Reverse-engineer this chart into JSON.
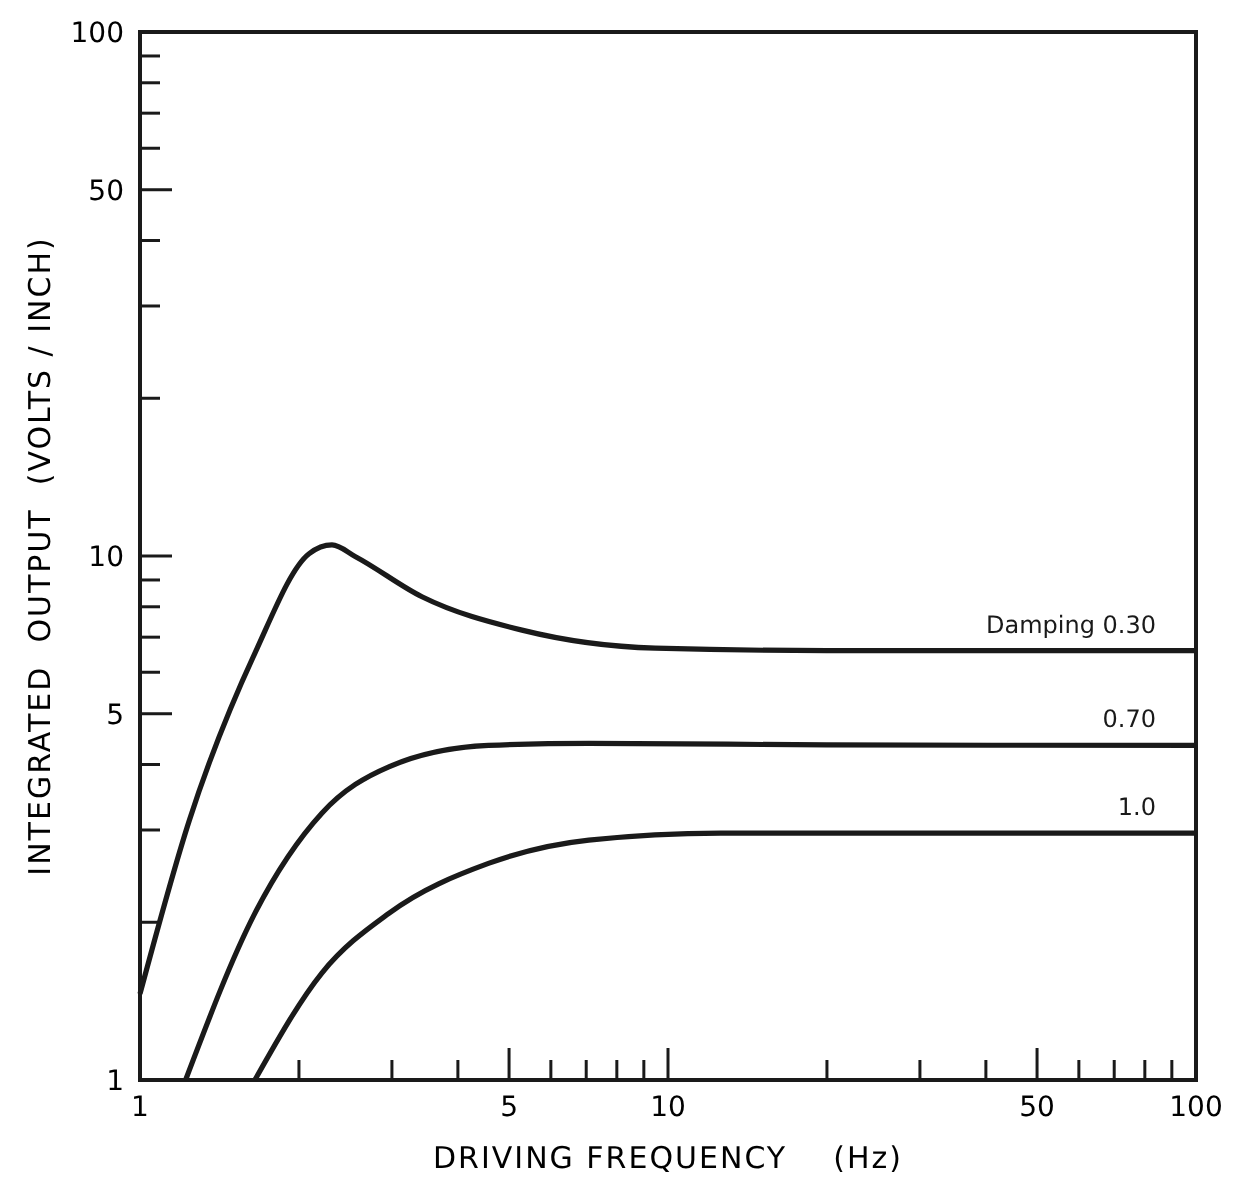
{
  "chart_data": {
    "type": "line",
    "xlabel": "DRIVING FREQUENCY    (Hz)",
    "ylabel": "INTEGRATED  OUTPUT  (VOLTS / INCH)",
    "log": "xy",
    "grid": false,
    "marker": "none",
    "line_style": "solid",
    "xlim": [
      1,
      100
    ],
    "ylim": [
      1,
      100
    ],
    "xticks": [
      1,
      {
        "value": 2,
        "label": null
      },
      {
        "value": 3,
        "label": null
      },
      {
        "value": 4,
        "label": null
      },
      5,
      {
        "value": 6,
        "label": null
      },
      {
        "value": 7,
        "label": null
      },
      {
        "value": 8,
        "label": null
      },
      {
        "value": 9,
        "label": null
      },
      10,
      {
        "value": 20,
        "label": null
      },
      {
        "value": 30,
        "label": null
      },
      {
        "value": 40,
        "label": null
      },
      50,
      {
        "value": 60,
        "label": null
      },
      {
        "value": 70,
        "label": null
      },
      {
        "value": 80,
        "label": null
      },
      {
        "value": 90,
        "label": null
      },
      100
    ],
    "yticks": [
      1,
      {
        "value": 2,
        "label": null
      },
      {
        "value": 3,
        "label": null
      },
      {
        "value": 4,
        "label": null
      },
      5,
      {
        "value": 6,
        "label": null
      },
      {
        "value": 7,
        "label": null
      },
      {
        "value": 8,
        "label": null
      },
      {
        "value": 9,
        "label": null
      },
      10,
      {
        "value": 20,
        "label": null
      },
      {
        "value": 30,
        "label": null
      },
      {
        "value": 40,
        "label": null
      },
      50,
      {
        "value": 60,
        "label": null
      },
      {
        "value": 70,
        "label": null
      },
      {
        "value": 80,
        "label": null
      },
      {
        "value": 90,
        "label": null
      },
      100
    ],
    "series": [
      {
        "name": "Damping  0.30",
        "color": "#1a1a1a",
        "x": [
          1,
          1.24,
          1.65,
          2.09,
          2.31,
          2.56,
          3.42,
          5.29,
          9.46,
          20,
          100
        ],
        "values": [
          1.46,
          3.13,
          6.52,
          10.1,
          10.5,
          9.97,
          8.36,
          7.22,
          6.67,
          6.6,
          6.6
        ]
      },
      {
        "name": "0.70",
        "color": "#1a1a1a",
        "x": [
          1.22,
          1.65,
          2.21,
          2.96,
          4.57,
          7.08,
          20,
          100
        ],
        "values": [
          1,
          2.08,
          3.23,
          3.96,
          4.35,
          4.39,
          4.36,
          4.35
        ]
      },
      {
        "name": "1.0",
        "color": "#1a1a1a",
        "x": [
          1.65,
          2.21,
          2.96,
          4.57,
          7.08,
          12.6,
          30,
          100
        ],
        "values": [
          1,
          1.6,
          2.08,
          2.59,
          2.87,
          2.96,
          2.96,
          2.96
        ]
      }
    ]
  }
}
